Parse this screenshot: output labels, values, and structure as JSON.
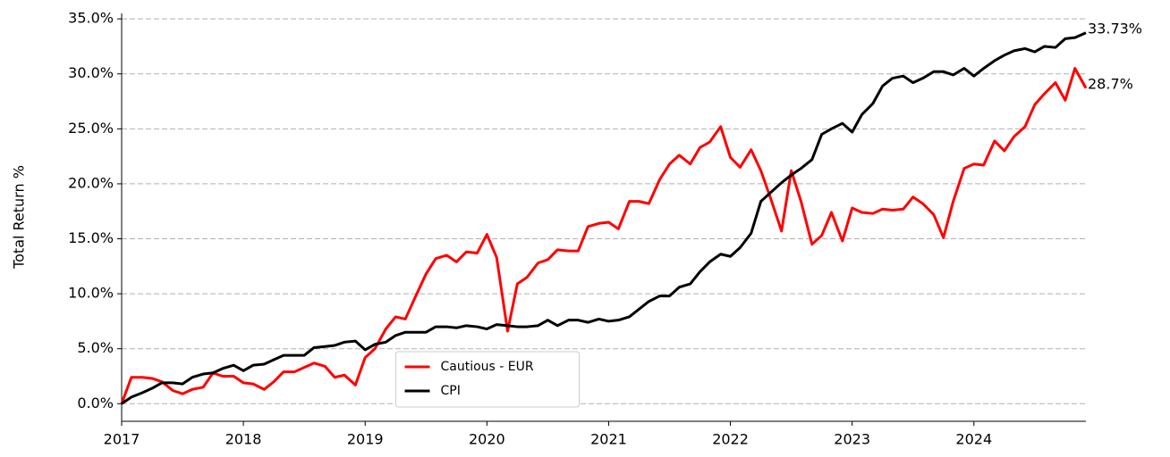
{
  "chart_data": {
    "type": "line",
    "y_label": "Total Return %",
    "x": [
      2017,
      2017.08,
      2017.17,
      2017.25,
      2017.33,
      2017.42,
      2017.5,
      2017.58,
      2017.67,
      2017.75,
      2017.83,
      2017.92,
      2018,
      2018.08,
      2018.17,
      2018.25,
      2018.33,
      2018.42,
      2018.5,
      2018.58,
      2018.67,
      2018.75,
      2018.83,
      2018.92,
      2019,
      2019.08,
      2019.17,
      2019.25,
      2019.33,
      2019.42,
      2019.5,
      2019.58,
      2019.67,
      2019.75,
      2019.83,
      2019.92,
      2020,
      2020.08,
      2020.17,
      2020.25,
      2020.33,
      2020.42,
      2020.5,
      2020.58,
      2020.67,
      2020.75,
      2020.83,
      2020.92,
      2021,
      2021.08,
      2021.17,
      2021.25,
      2021.33,
      2021.42,
      2021.5,
      2021.58,
      2021.67,
      2021.75,
      2021.83,
      2021.92,
      2022,
      2022.08,
      2022.17,
      2022.25,
      2022.33,
      2022.42,
      2022.5,
      2022.58,
      2022.67,
      2022.75,
      2022.83,
      2022.92,
      2023,
      2023.08,
      2023.17,
      2023.25,
      2023.33,
      2023.42,
      2023.5,
      2023.58,
      2023.67,
      2023.75,
      2023.83,
      2023.92,
      2024,
      2024.08,
      2024.17,
      2024.25,
      2024.33,
      2024.42,
      2024.5,
      2024.58,
      2024.67,
      2024.75,
      2024.83,
      2024.92
    ],
    "series": [
      {
        "name": "Cautious - EUR",
        "color": "#ff0000",
        "end_label": "28.7%",
        "values": [
          0,
          2.4,
          2.4,
          2.3,
          2.0,
          1.2,
          0.9,
          1.3,
          1.5,
          2.8,
          2.5,
          2.5,
          1.9,
          1.8,
          1.3,
          2.0,
          2.9,
          2.9,
          3.3,
          3.7,
          3.4,
          2.4,
          2.6,
          1.7,
          4.2,
          5.0,
          6.8,
          7.9,
          7.7,
          9.9,
          11.8,
          13.2,
          13.5,
          12.9,
          13.8,
          13.7,
          15.4,
          13.3,
          6.6,
          10.9,
          11.5,
          12.8,
          13.1,
          14.0,
          13.9,
          13.9,
          16.1,
          16.4,
          16.5,
          15.9,
          18.4,
          18.4,
          18.2,
          20.4,
          21.8,
          22.6,
          21.8,
          23.3,
          23.8,
          25.2,
          22.4,
          21.5,
          23.1,
          21.2,
          18.7,
          15.7,
          21.2,
          18.4,
          14.5,
          15.3,
          17.4,
          14.8,
          17.8,
          17.4,
          17.3,
          17.7,
          17.6,
          17.7,
          18.8,
          18.2,
          17.2,
          15.1,
          18.4,
          21.4,
          21.8,
          21.7,
          23.9,
          23.0,
          24.3,
          25.2,
          27.2,
          28.2,
          29.2,
          27.6,
          30.5,
          28.7
        ]
      },
      {
        "name": "CPI",
        "color": "#000000",
        "end_label": "33.73%",
        "values": [
          0,
          0.6,
          1.0,
          1.4,
          1.9,
          1.9,
          1.8,
          2.4,
          2.7,
          2.8,
          3.2,
          3.5,
          3.0,
          3.5,
          3.6,
          4.0,
          4.4,
          4.4,
          4.4,
          5.1,
          5.2,
          5.3,
          5.6,
          5.7,
          4.9,
          5.4,
          5.6,
          6.2,
          6.5,
          6.5,
          6.5,
          7.0,
          7.0,
          6.9,
          7.1,
          7.0,
          6.8,
          7.2,
          7.1,
          7.0,
          7.0,
          7.1,
          7.6,
          7.1,
          7.6,
          7.6,
          7.4,
          7.7,
          7.5,
          7.6,
          7.9,
          8.6,
          9.3,
          9.8,
          9.8,
          10.6,
          10.9,
          12.0,
          12.9,
          13.6,
          13.4,
          14.2,
          15.5,
          18.4,
          19.2,
          20.1,
          20.8,
          21.4,
          22.2,
          24.5,
          25.0,
          25.5,
          24.7,
          26.3,
          27.3,
          28.9,
          29.6,
          29.8,
          29.2,
          29.6,
          30.2,
          30.2,
          29.9,
          30.5,
          29.8,
          30.5,
          31.2,
          31.7,
          32.1,
          32.3,
          32.0,
          32.5,
          32.4,
          33.2,
          33.3,
          33.73
        ]
      }
    ],
    "xlim": [
      2017,
      2024.92
    ],
    "xticks": [
      2017,
      2018,
      2019,
      2020,
      2021,
      2022,
      2023,
      2024
    ],
    "ylim": [
      -1.6,
      35.5
    ],
    "yticks": [
      {
        "value": 0,
        "label": "0.0%"
      },
      {
        "value": 5,
        "label": "5.0%"
      },
      {
        "value": 10,
        "label": "10.0%"
      },
      {
        "value": 15,
        "label": "15.0%"
      },
      {
        "value": 20,
        "label": "20.0%"
      },
      {
        "value": 25,
        "label": "25.0%"
      },
      {
        "value": 30,
        "label": "30.0%"
      },
      {
        "value": 35,
        "label": "35.0%"
      }
    ],
    "grid": true,
    "legend": "lower center"
  }
}
